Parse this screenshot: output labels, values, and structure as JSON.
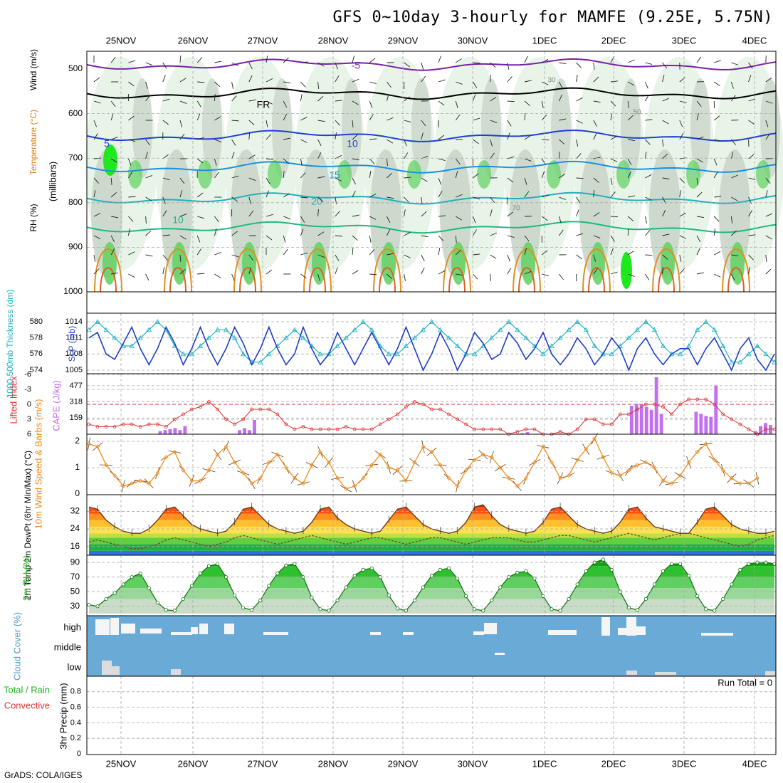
{
  "title": "GFS 0~10day 3-hourly for MAMFE (9.25E, 5.75N)",
  "credit": "GrADS: COLA/IGES",
  "colors": {
    "rh_light": "#e5f3e5",
    "rh_mid": "#c9d6c9",
    "rh_green": "#5fd05f",
    "rh_bright": "#1ee81e",
    "temp_purple": "#7a1fa8",
    "temp_blue": "#1e40d0",
    "temp_lightblue": "#1e90e0",
    "temp_cyan": "#20b0c0",
    "temp_green": "#20b880",
    "temp_orange": "#e09020",
    "slp": "#1e3ec8",
    "thick": "#20b0c0",
    "li": "#e03030",
    "cape": "#c070f0",
    "wind": "#f08c1e",
    "rh2m": "#1eb41e",
    "cloud": "#6aaad6"
  },
  "chart_data": [
    {
      "type": "heatmap",
      "name": "upper-air",
      "x_dates": [
        "25NOV",
        "26NOV",
        "27NOV",
        "28NOV",
        "29NOV",
        "30NOV",
        "1DEC",
        "2DEC",
        "3DEC",
        "4DEC"
      ],
      "ylabel": "(millibars)",
      "y_ticks": [
        500,
        600,
        700,
        800,
        900,
        1000
      ],
      "ylim": [
        1000,
        460
      ],
      "legend": [
        "RH (%)",
        "Temperature (°C)",
        "Wind (m/s)"
      ],
      "contour_labels": [
        "-5",
        "FR",
        "5",
        "10",
        "15",
        "20",
        "10",
        "30",
        "50",
        "70"
      ],
      "isotherms": [
        {
          "label": "-5",
          "color": "#7a1fa8",
          "p": 490
        },
        {
          "label": "FR",
          "color": "#000000",
          "p": 555
        },
        {
          "label": "5",
          "color": "#1e40d0",
          "p": 650
        },
        {
          "label": "10",
          "color": "#1e90e0",
          "p": 720
        },
        {
          "label": "15",
          "color": "#20b0c0",
          "p": 790
        },
        {
          "label": "20",
          "color": "#20b880",
          "p": 855
        }
      ]
    },
    {
      "type": "line",
      "name": "slp-thickness",
      "ylabel_left": "1000-500mb Thickness (dm)",
      "ylabel_right": "SLP (mb)",
      "left_ticks": [
        574,
        576,
        578,
        580
      ],
      "right_ticks": [
        1005,
        1008,
        1011,
        1014
      ],
      "slp_ylim": [
        1004,
        1016
      ],
      "series": [
        {
          "name": "SLP (mb)",
          "values": [
            1011,
            1012,
            1008,
            1007,
            1010,
            1013,
            1009,
            1006,
            1009,
            1013,
            1010,
            1006,
            1009,
            1013,
            1009,
            1006,
            1009,
            1013,
            1010,
            1006,
            1009,
            1013,
            1009,
            1006,
            1008,
            1013,
            1009,
            1006,
            1008,
            1012,
            1009,
            1006,
            1009,
            1012,
            1009,
            1006,
            1009,
            1013,
            1009,
            1005,
            1008,
            1012,
            1009,
            1005,
            1008,
            1012,
            1010,
            1007,
            1008,
            1012,
            1010,
            1007,
            1009,
            1012,
            1008,
            1006,
            1008,
            1011,
            1009,
            1006,
            1008,
            1011,
            1009,
            1005,
            1009,
            1011,
            1008,
            1006,
            1008,
            1009,
            1009,
            1006,
            1009,
            1011,
            1008,
            1005,
            1009,
            1011,
            1007,
            1005,
            1008
          ]
        },
        {
          "name": "1000-500mb Thickness (dm)",
          "values": [
            579,
            580,
            579,
            578,
            577,
            577,
            578,
            579,
            580,
            579,
            577,
            576,
            576,
            577,
            578,
            579,
            579,
            578,
            576,
            575,
            575,
            576,
            577,
            578,
            579,
            578,
            577,
            576,
            576,
            577,
            578,
            579,
            580,
            579,
            577,
            576,
            576,
            577,
            578,
            579,
            580,
            579,
            578,
            577,
            576,
            576,
            577,
            578,
            579,
            580,
            579,
            578,
            577,
            576,
            577,
            578,
            579,
            580,
            579,
            577,
            576,
            576,
            577,
            578,
            579,
            580,
            579,
            577,
            576,
            576,
            577,
            579,
            580,
            579,
            577,
            575,
            575,
            576,
            577,
            576,
            575
          ]
        }
      ]
    },
    {
      "type": "bar",
      "name": "li-cape",
      "ylabel_left": "Lifted Index",
      "ylabel_right": "CAPE (J/kg)",
      "left_ticks": [
        "6",
        "3",
        "0",
        "-3",
        "-6"
      ],
      "right_ticks": [
        159,
        318,
        477
      ],
      "cape_ylim": [
        0,
        560
      ],
      "series": [
        {
          "name": "Lifted Index",
          "values": [
            4,
            4.5,
            4.5,
            4.5,
            4,
            4,
            4.5,
            4,
            4,
            4.5,
            3,
            2,
            1,
            0.5,
            -0.5,
            1,
            3,
            4,
            3,
            1,
            1,
            1,
            2,
            4,
            5,
            4.5,
            5,
            5,
            5,
            5,
            4.5,
            5,
            5,
            5,
            4,
            3,
            2,
            0.5,
            -0.5,
            0,
            1,
            1,
            2,
            3,
            4,
            5,
            5,
            5,
            5,
            6,
            5.5,
            5,
            5,
            6,
            6,
            5.5,
            6,
            5,
            3,
            3,
            4,
            4,
            2,
            2,
            1,
            0,
            0,
            0.5,
            2,
            0,
            -1,
            -1,
            -1,
            0,
            2,
            3,
            4,
            5,
            6,
            5,
            5
          ]
        },
        {
          "name": "CAPE (J/kg)",
          "values": [
            0,
            0,
            0,
            0,
            0,
            0,
            0,
            0,
            0,
            0,
            0,
            0,
            0,
            0,
            30,
            40,
            50,
            60,
            40,
            80,
            0,
            0,
            0,
            0,
            0,
            0,
            0,
            0,
            0,
            0,
            40,
            60,
            40,
            140,
            0,
            0,
            0,
            0,
            0,
            0,
            0,
            0,
            0,
            0,
            0,
            0,
            0,
            0,
            0,
            0,
            0,
            0,
            0,
            0,
            0,
            0,
            0,
            0,
            0,
            0,
            0,
            0,
            0,
            0,
            0,
            0,
            0,
            0,
            0,
            0,
            0,
            0,
            0,
            0,
            0,
            0,
            0,
            0,
            0,
            0,
            0,
            0,
            0,
            0,
            0,
            0,
            0,
            10,
            20,
            0,
            0,
            0,
            0,
            0,
            0,
            0,
            0,
            0,
            0,
            0,
            0,
            0,
            0,
            0,
            0,
            0,
            0,
            0,
            0,
            280,
            300,
            290,
            270,
            240,
            560,
            200,
            0,
            0,
            0,
            0,
            0,
            0,
            220,
            200,
            180,
            170,
            480,
            0,
            0,
            0,
            0,
            0,
            0,
            0,
            30,
            80,
            110,
            90
          ]
        }
      ]
    },
    {
      "type": "line",
      "name": "10m-wind",
      "ylabel": "10m Wind Speed & Barbs (m/s)",
      "y_ticks": [
        0,
        1,
        2
      ],
      "ylim": [
        0,
        2.1
      ],
      "series": [
        {
          "name": "10m Wind Speed (m/s)",
          "values": [
            1.9,
            1.8,
            1.1,
            0.7,
            0.3,
            0.4,
            0.5,
            0.4,
            0.8,
            1.4,
            1.6,
            0.9,
            0.5,
            0.5,
            0.9,
            1.5,
            1.8,
            1.2,
            0.8,
            0.4,
            0.6,
            1.2,
            1.5,
            1.0,
            0.6,
            0.4,
            1.1,
            1.6,
            1.2,
            0.6,
            0.2,
            0.3,
            0.6,
            1.1,
            1.5,
            1.0,
            0.9,
            0.5,
            1.2,
            1.8,
            1.6,
            1.1,
            0.6,
            0.3,
            0.9,
            1.3,
            1.5,
            1.4,
            1.0,
            0.6,
            0.3,
            0.6,
            1.2,
            1.8,
            1.2,
            0.6,
            0.7,
            1.3,
            1.7,
            2.1,
            1.4,
            0.8,
            0.7,
            0.9,
            1.1,
            1.2,
            1.0,
            0.5,
            0.4,
            0.7,
            1.2,
            1.6,
            1.9,
            1.3,
            0.9,
            0.6,
            0.4,
            0.4,
            0.6
          ]
        }
      ]
    },
    {
      "type": "area",
      "name": "2m-temp",
      "ylabel": "2m Temp 2m DewPt (6hr Min/Max) (°C)",
      "y_ticks": [
        16,
        24,
        32
      ],
      "ylim": [
        12,
        38
      ],
      "series": [
        {
          "name": "2m Temp",
          "values": [
            34,
            33,
            28,
            25,
            23,
            22,
            22,
            24,
            28,
            33,
            34,
            30,
            26,
            24,
            23,
            22,
            23,
            27,
            33,
            34,
            30,
            26,
            24,
            23,
            22,
            23,
            27,
            33,
            34,
            29,
            26,
            24,
            23,
            22,
            23,
            28,
            33,
            34,
            30,
            26,
            24,
            23,
            22,
            23,
            27,
            34,
            35,
            30,
            26,
            24,
            23,
            22,
            23,
            27,
            33,
            34,
            30,
            26,
            24,
            23,
            22,
            23,
            27,
            33,
            34,
            29,
            25,
            24,
            23,
            22,
            22,
            27,
            33,
            34,
            30,
            26,
            24,
            23,
            22,
            22,
            23
          ]
        },
        {
          "name": "2m DewPt",
          "values": [
            18,
            19,
            18,
            17,
            16,
            15,
            15,
            16,
            17,
            19,
            20,
            19,
            18,
            17,
            16,
            17,
            18,
            20,
            21,
            20,
            19,
            18,
            17,
            18,
            19,
            20,
            21,
            20,
            19,
            18,
            17,
            18,
            19,
            20,
            20,
            19,
            18,
            17,
            18,
            19,
            20,
            20,
            19,
            18,
            17,
            18,
            19,
            20,
            20,
            20,
            19,
            18,
            18,
            19,
            20,
            21,
            21,
            20,
            19,
            18,
            19,
            20,
            21,
            22,
            21,
            20,
            19,
            20,
            21,
            22,
            22,
            21,
            20,
            19,
            18,
            17,
            16,
            17,
            19,
            20,
            21
          ]
        }
      ]
    },
    {
      "type": "area",
      "name": "2m-rh",
      "ylabel": "2m RH (%)",
      "y_ticks": [
        30,
        50,
        70,
        90
      ],
      "ylim": [
        20,
        95
      ],
      "series": [
        {
          "name": "2m RH (%)",
          "values": [
            32,
            30,
            40,
            48,
            60,
            70,
            75,
            55,
            35,
            25,
            24,
            40,
            58,
            75,
            85,
            88,
            70,
            45,
            28,
            25,
            38,
            58,
            75,
            86,
            88,
            70,
            42,
            26,
            24,
            38,
            56,
            72,
            80,
            82,
            70,
            45,
            27,
            24,
            38,
            56,
            72,
            80,
            82,
            68,
            44,
            26,
            24,
            38,
            56,
            70,
            76,
            78,
            68,
            44,
            26,
            24,
            40,
            60,
            78,
            90,
            94,
            80,
            50,
            28,
            25,
            40,
            60,
            78,
            88,
            88,
            72,
            44,
            26,
            24,
            40,
            60,
            80,
            88,
            90,
            90,
            88
          ]
        }
      ]
    },
    {
      "type": "bar",
      "name": "cloud-cover",
      "ylabel": "Cloud Cover (%)",
      "levels": [
        "high",
        "middle",
        "low"
      ]
    },
    {
      "type": "bar",
      "name": "precip",
      "ylabel": "3hr Precip (mm)",
      "legend": [
        "Total / Rain",
        "Convective"
      ],
      "y_ticks": [
        "0",
        "0.2",
        "0.4",
        "0.6",
        "0.8"
      ],
      "ylim": [
        0,
        1
      ],
      "run_total_label": "Run Total = 0",
      "x_dates": [
        "25NOV",
        "26NOV",
        "27NOV",
        "28NOV",
        "29NOV",
        "30NOV",
        "1DEC",
        "2DEC",
        "3DEC",
        "4DEC"
      ]
    }
  ]
}
